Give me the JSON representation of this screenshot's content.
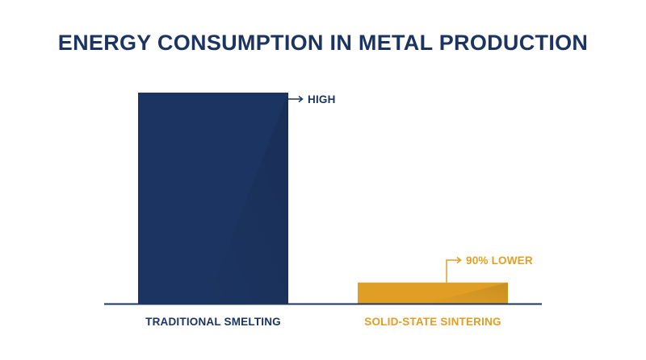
{
  "chart_data": {
    "type": "bar",
    "title": "ENERGY CONSUMPTION IN METAL PRODUCTION",
    "xlabel": "",
    "ylabel": "",
    "categories": [
      "TRADITIONAL SMELTING",
      "SOLID-STATE SINTERING"
    ],
    "values": [
      100,
      10
    ],
    "ylim": [
      0,
      100
    ],
    "annotations": [
      "HIGH",
      "90% LOWER"
    ],
    "colors": [
      "#1c3461",
      "#e09e25"
    ],
    "grid": false,
    "legend": "none"
  }
}
